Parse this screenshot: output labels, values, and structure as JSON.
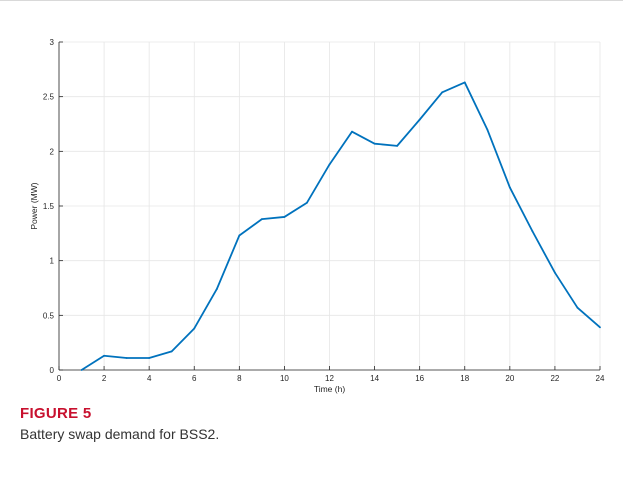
{
  "chart_data": {
    "type": "line",
    "title": "",
    "xlabel": "Time (h)",
    "ylabel": "Power (MW)",
    "xlim": [
      0,
      24
    ],
    "ylim": [
      0,
      3
    ],
    "xticks": [
      0,
      2,
      4,
      6,
      8,
      10,
      12,
      14,
      16,
      18,
      20,
      22,
      24
    ],
    "yticks": [
      0,
      0.5,
      1,
      1.5,
      2,
      2.5,
      3
    ],
    "ytick_labels": [
      "0",
      "0.5",
      "1",
      "1.5",
      "2",
      "2.5",
      "3"
    ],
    "grid": true,
    "line_color": "#0072BD",
    "series": [
      {
        "x": [
          1,
          2,
          3,
          4,
          5,
          6,
          7,
          8,
          9,
          10,
          11,
          12,
          13,
          14,
          15,
          16,
          17,
          18,
          19,
          20,
          21,
          22,
          23,
          24
        ],
        "y": [
          0.0,
          0.13,
          0.11,
          0.11,
          0.17,
          0.38,
          0.74,
          1.23,
          1.38,
          1.4,
          1.53,
          1.88,
          2.18,
          2.07,
          2.05,
          2.29,
          2.54,
          2.63,
          2.2,
          1.67,
          1.27,
          0.89,
          0.57,
          0.39
        ]
      }
    ]
  },
  "caption": {
    "figure_number": "FIGURE 5",
    "text": "Battery swap demand for BSS2."
  }
}
